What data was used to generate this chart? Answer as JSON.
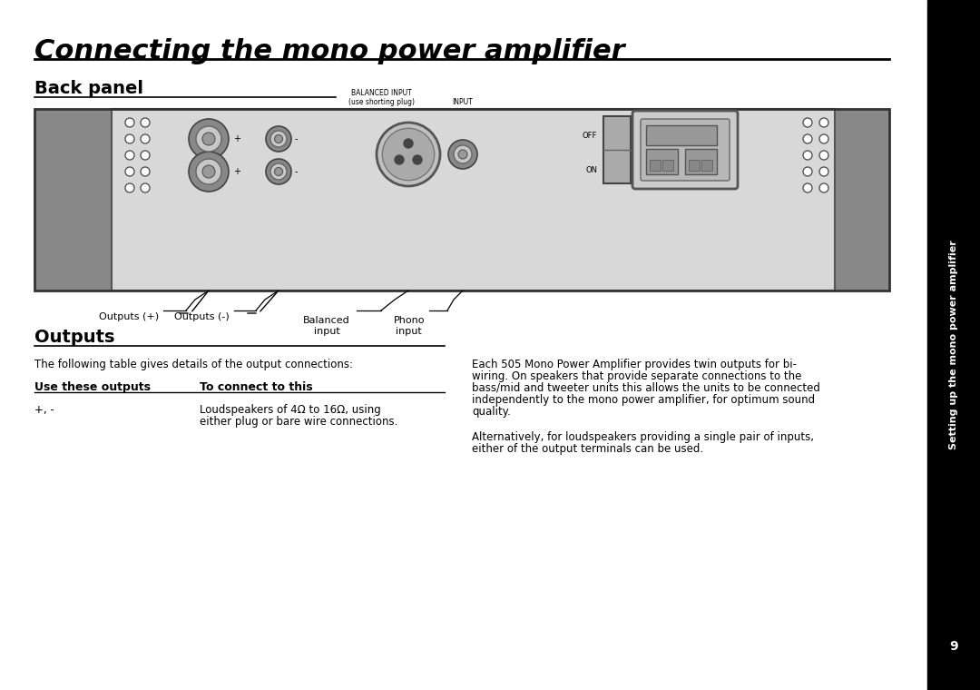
{
  "title": "Connecting the mono power amplifier",
  "section1": "Back panel",
  "section2": "Outputs",
  "bg_color": "#ffffff",
  "panel_bg": "#d8d8d8",
  "panel_dark": "#888888",
  "panel_border": "#555555",
  "body_text1": "The following table gives details of the output connections:",
  "table_header1": "Use these outputs",
  "table_header2": "To connect to this",
  "table_row_col1": "+, -",
  "table_row_col2a": "Loudspeakers of 4Ω to 16Ω, using",
  "table_row_col2b": "either plug or bare wire connections.",
  "para1a": "Each 505 Mono Power Amplifier provides twin outputs for bi-",
  "para1b": "wiring. On speakers that provide separate connections to the",
  "para1c": "bass/mid and tweeter units this allows the units to be connected",
  "para1d": "independently to the mono power amplifier, for optimum sound",
  "para1e": "quality.",
  "para2a": "Alternatively, for loudspeakers providing a single pair of inputs,",
  "para2b": "either of the output terminals can be used.",
  "sidebar_text": "Setting up the mono power amplifier",
  "sidebar_num": "9",
  "label_outputs_pos": "Outputs (+)",
  "label_outputs_neg": "Outputs (-)",
  "label_balanced": "Balanced\ninput",
  "label_phono": "Phono\ninput",
  "label_balanced_input": "BALANCED INPUT\n(use shorting plug)",
  "label_input": "INPUT",
  "label_off": "OFF",
  "label_on": "ON"
}
